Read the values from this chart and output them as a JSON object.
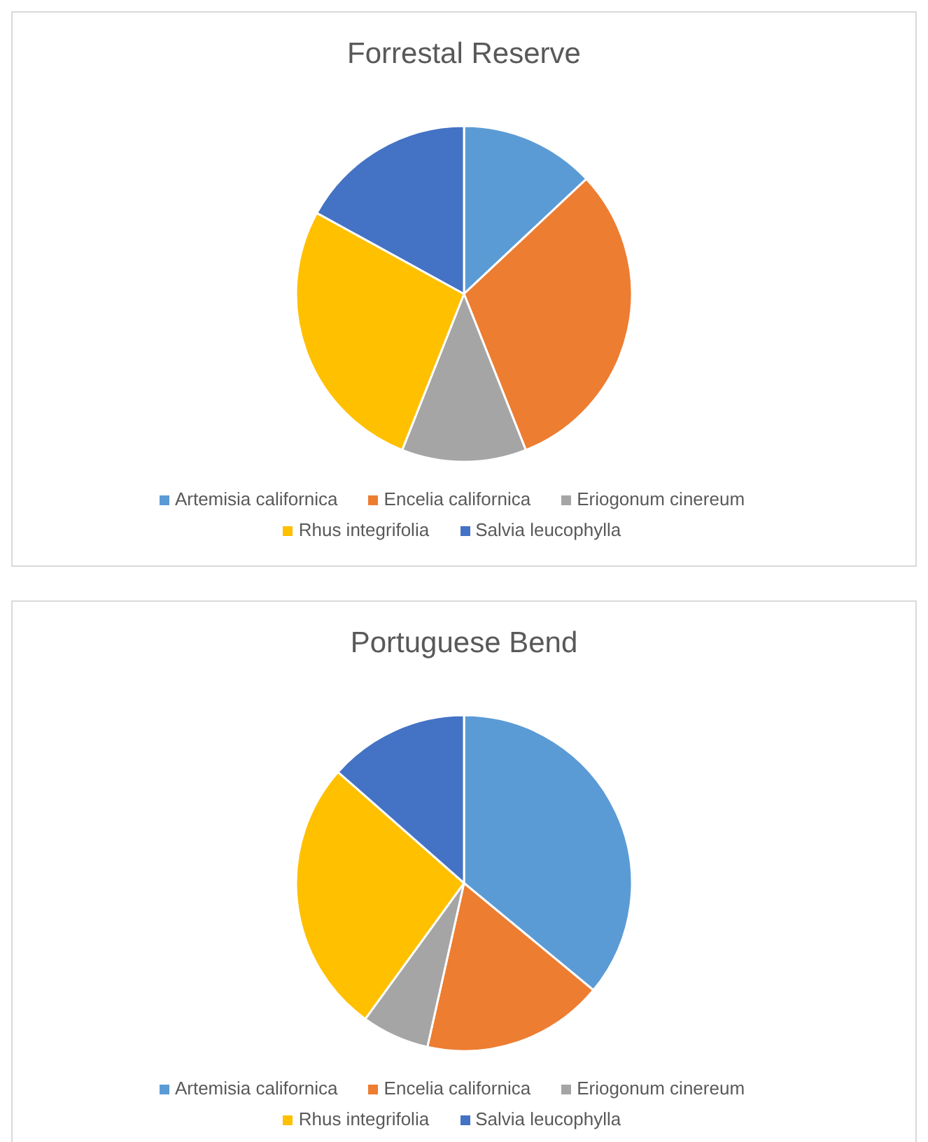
{
  "chart_data": [
    {
      "type": "pie",
      "title": "Forrestal Reserve",
      "categories": [
        "Artemisia californica",
        "Encelia californica",
        "Eriogonum cinereum",
        "Rhus integrifolia",
        "Salvia leucophylla"
      ],
      "values": [
        13,
        31,
        12,
        27,
        17
      ],
      "colors": [
        "#5b9bd5",
        "#ed7d31",
        "#a5a5a5",
        "#ffc000",
        "#4472c4"
      ],
      "legend": "bottom"
    },
    {
      "type": "pie",
      "title": "Portuguese Bend",
      "categories": [
        "Artemisia californica",
        "Encelia californica",
        "Eriogonum cinereum",
        "Rhus integrifolia",
        "Salvia leucophylla"
      ],
      "values": [
        36,
        17.5,
        6.5,
        26.5,
        13.5
      ],
      "colors": [
        "#5b9bd5",
        "#ed7d31",
        "#a5a5a5",
        "#ffc000",
        "#4472c4"
      ],
      "legend": "bottom"
    }
  ]
}
